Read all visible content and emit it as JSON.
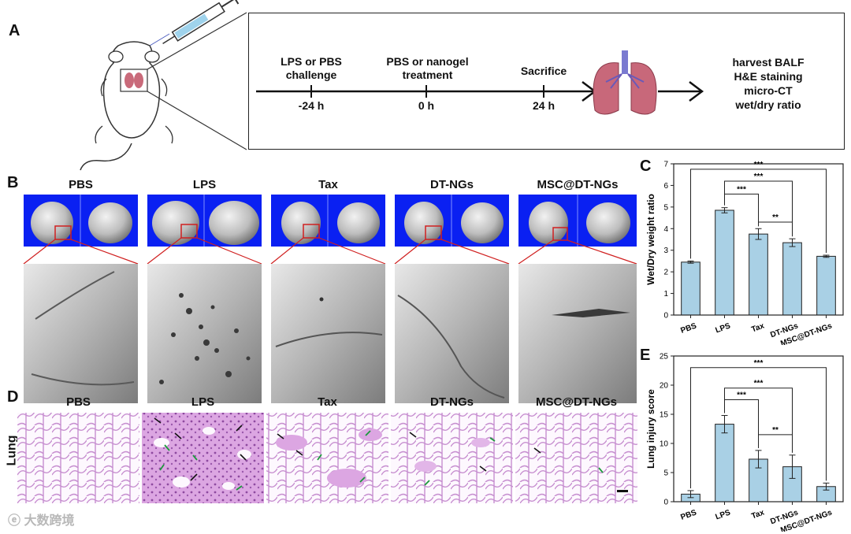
{
  "panels": {
    "A": "A",
    "B": "B",
    "C": "C",
    "D": "D",
    "E": "E"
  },
  "timeline": {
    "events": [
      {
        "label": "LPS or PBS challenge",
        "time": "-24 h"
      },
      {
        "label": "PBS or nanogel treatment",
        "time": "0 h"
      },
      {
        "label": "Sacrifice",
        "time": "24 h"
      }
    ],
    "outcomes": [
      "harvest BALF",
      "H&E staining",
      "micro-CT",
      "wet/dry ratio"
    ]
  },
  "groups": [
    "PBS",
    "LPS",
    "Tax",
    "DT-NGs",
    "MSC@DT-NGs"
  ],
  "histology_row_label": "Lung",
  "colors": {
    "bar_fill": "#a9d0e5",
    "ct_background": "#0a20f2",
    "lung_tissue": "#e9c6ec"
  },
  "chart_data": [
    {
      "id": "C",
      "type": "bar",
      "categories": [
        "PBS",
        "LPS",
        "Tax",
        "DT-NGs",
        "MSC@DT-NGs"
      ],
      "values": [
        2.45,
        4.85,
        3.75,
        3.35,
        2.72
      ],
      "errors": [
        0.05,
        0.12,
        0.25,
        0.18,
        0.05
      ],
      "ylabel": "Wet/Dry weight ratio",
      "ylim": [
        0,
        7
      ],
      "yticks": [
        0,
        1,
        2,
        3,
        4,
        5,
        6,
        7
      ],
      "significance": [
        {
          "from": 1,
          "to": 2,
          "label": "***"
        },
        {
          "from": 2,
          "to": 3,
          "label": "**"
        },
        {
          "from": 1,
          "to": 3,
          "label": "***"
        },
        {
          "from": 0,
          "to": 4,
          "label": "***"
        }
      ]
    },
    {
      "id": "E",
      "type": "bar",
      "categories": [
        "PBS",
        "LPS",
        "Tax",
        "DT-NGs",
        "MSC@DT-NGs"
      ],
      "values": [
        1.3,
        13.3,
        7.3,
        6.0,
        2.6
      ],
      "errors": [
        0.6,
        1.5,
        1.5,
        2.0,
        0.6
      ],
      "ylabel": "Lung injury score",
      "ylim": [
        0,
        25
      ],
      "yticks": [
        0,
        5,
        10,
        15,
        20,
        25
      ],
      "significance": [
        {
          "from": 1,
          "to": 2,
          "label": "***"
        },
        {
          "from": 2,
          "to": 3,
          "label": "**"
        },
        {
          "from": 1,
          "to": 3,
          "label": "***"
        },
        {
          "from": 0,
          "to": 4,
          "label": "***"
        }
      ]
    }
  ],
  "watermark": "大数跨境"
}
